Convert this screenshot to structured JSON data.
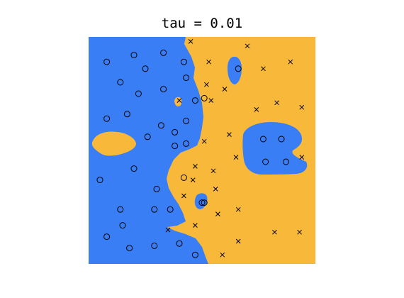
{
  "chart_data": {
    "type": "scatter",
    "title": "tau = 0.01",
    "xlabel": "",
    "ylabel": "",
    "xlim": [
      0,
      1
    ],
    "ylim": [
      0,
      1
    ],
    "grid": false,
    "axes_visible": false,
    "colors": {
      "class_o_region": "#3a7ef6",
      "class_x_region": "#f8b93b",
      "marker": "#000000"
    },
    "series": [
      {
        "marker": "o",
        "points": [
          [
            0.08,
            0.89
          ],
          [
            0.2,
            0.92
          ],
          [
            0.33,
            0.93
          ],
          [
            0.25,
            0.86
          ],
          [
            0.42,
            0.89
          ],
          [
            0.14,
            0.8
          ],
          [
            0.22,
            0.75
          ],
          [
            0.33,
            0.77
          ],
          [
            0.43,
            0.82
          ],
          [
            0.47,
            0.72
          ],
          [
            0.17,
            0.66
          ],
          [
            0.08,
            0.64
          ],
          [
            0.32,
            0.61
          ],
          [
            0.43,
            0.63
          ],
          [
            0.51,
            0.73
          ],
          [
            0.26,
            0.56
          ],
          [
            0.38,
            0.58
          ],
          [
            0.38,
            0.52
          ],
          [
            0.43,
            0.53
          ],
          [
            0.2,
            0.42
          ],
          [
            0.05,
            0.37
          ],
          [
            0.3,
            0.33
          ],
          [
            0.42,
            0.38
          ],
          [
            0.51,
            0.27
          ],
          [
            0.14,
            0.24
          ],
          [
            0.29,
            0.24
          ],
          [
            0.36,
            0.24
          ],
          [
            0.15,
            0.17
          ],
          [
            0.08,
            0.12
          ],
          [
            0.18,
            0.07
          ],
          [
            0.29,
            0.08
          ],
          [
            0.4,
            0.09
          ],
          [
            0.47,
            0.04
          ],
          [
            0.5,
            0.27
          ],
          [
            0.66,
            0.86
          ],
          [
            0.77,
            0.55
          ],
          [
            0.85,
            0.55
          ],
          [
            0.78,
            0.45
          ],
          [
            0.87,
            0.45
          ]
        ]
      },
      {
        "marker": "x",
        "points": [
          [
            0.45,
            0.98
          ],
          [
            0.7,
            0.96
          ],
          [
            0.53,
            0.89
          ],
          [
            0.77,
            0.86
          ],
          [
            0.89,
            0.89
          ],
          [
            0.52,
            0.79
          ],
          [
            0.6,
            0.77
          ],
          [
            0.4,
            0.72
          ],
          [
            0.54,
            0.72
          ],
          [
            0.74,
            0.68
          ],
          [
            0.83,
            0.71
          ],
          [
            0.94,
            0.69
          ],
          [
            0.62,
            0.57
          ],
          [
            0.51,
            0.54
          ],
          [
            0.47,
            0.43
          ],
          [
            0.55,
            0.41
          ],
          [
            0.65,
            0.47
          ],
          [
            0.94,
            0.47
          ],
          [
            0.46,
            0.37
          ],
          [
            0.56,
            0.33
          ],
          [
            0.42,
            0.3
          ],
          [
            0.66,
            0.24
          ],
          [
            0.57,
            0.22
          ],
          [
            0.47,
            0.17
          ],
          [
            0.35,
            0.15
          ],
          [
            0.66,
            0.1
          ],
          [
            0.82,
            0.14
          ],
          [
            0.93,
            0.14
          ],
          [
            0.59,
            0.04
          ]
        ]
      }
    ]
  }
}
